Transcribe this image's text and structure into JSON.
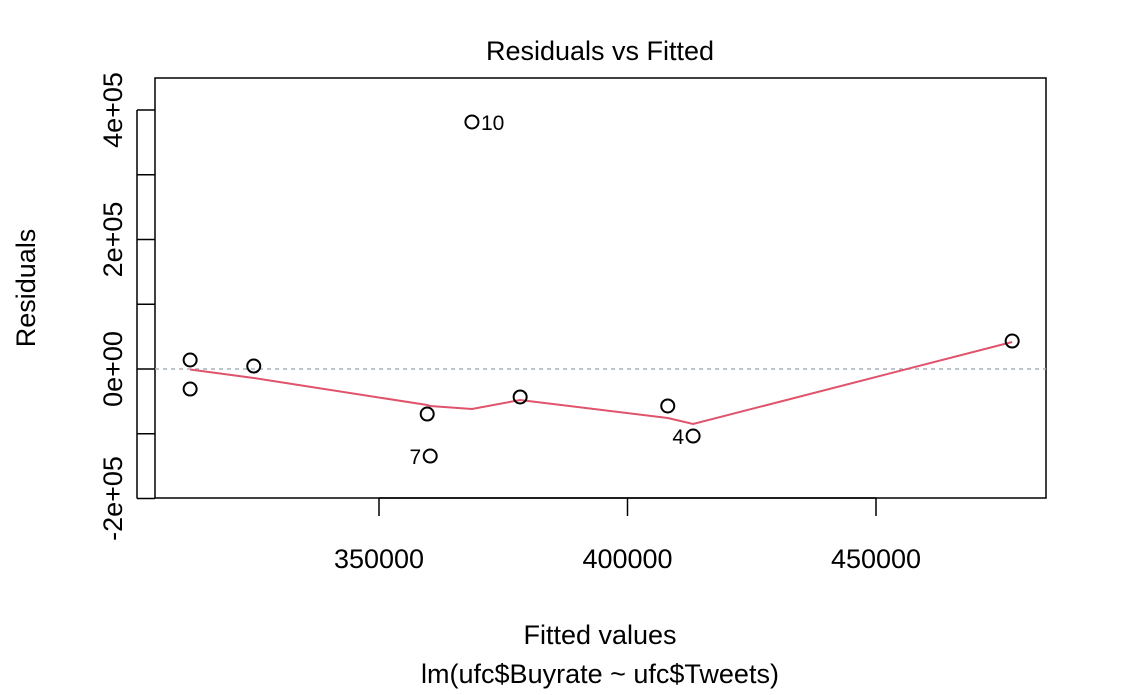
{
  "chart_data": {
    "type": "scatter",
    "title": "Residuals vs Fitted",
    "x_label": "Fitted values",
    "y_label": "Residuals",
    "subtitle": "lm(ufc$Buyrate ~ ufc$Tweets)",
    "series": [
      {
        "x": [
          312000,
          312000,
          324800,
          359700,
          360300,
          368700,
          378400,
          408100,
          413200,
          477400
        ],
        "values": [
          13900,
          -30900,
          4600,
          -69500,
          -134400,
          381500,
          -43200,
          -57100,
          -103500,
          43200
        ],
        "color": "#000000"
      }
    ],
    "point_labels": [
      {
        "index": 4,
        "text": "7"
      },
      {
        "index": 5,
        "text": "10"
      },
      {
        "index": 8,
        "text": "4"
      }
    ],
    "smooth": {
      "color": "#DF536B",
      "x": [
        312000,
        324800,
        359700,
        360300,
        368700,
        378400,
        408100,
        413200,
        477400
      ],
      "values": [
        -800,
        -13900,
        -55600,
        -57100,
        -61800,
        -47900,
        -75700,
        -84900,
        41700
      ]
    },
    "zero_line_color": "#A9B0BA",
    "xlim": [
      304930,
      484205
    ],
    "ylim": [
      -199200,
      449400
    ],
    "xticks": [
      350000,
      400000,
      450000
    ],
    "yticks": [
      {
        "value": -200000,
        "label": "-2e+05"
      },
      {
        "value": 0,
        "label": "0e+00"
      },
      {
        "value": 200000,
        "label": "2e+05"
      },
      {
        "value": 400000,
        "label": "4e+05"
      }
    ],
    "yminor_ticks": [
      -100000,
      100000,
      300000
    ]
  }
}
